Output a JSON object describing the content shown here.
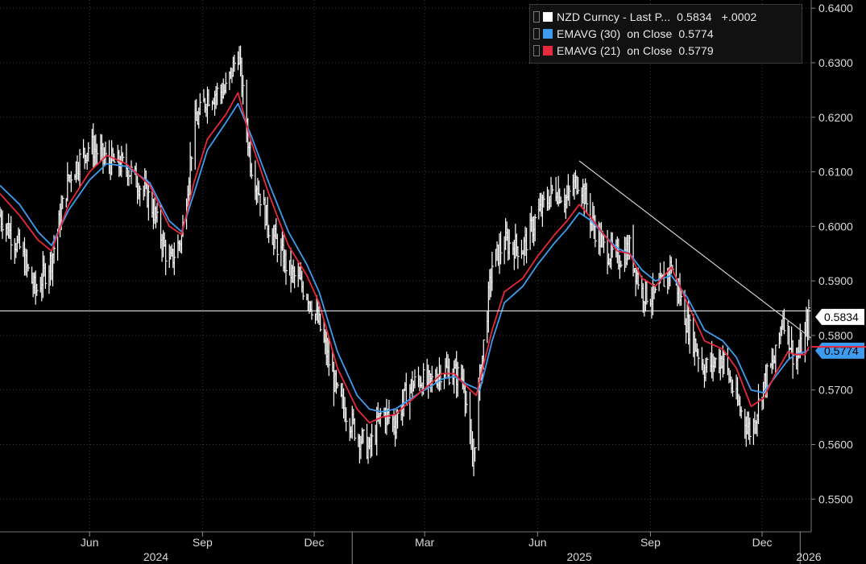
{
  "chart_data": {
    "type": "line",
    "title": "",
    "ticker": "NZD Curncy",
    "ylim": [
      0.544,
      0.6415
    ],
    "yticks": [
      0.55,
      0.56,
      0.57,
      0.58,
      0.59,
      0.6,
      0.61,
      0.62,
      0.63,
      0.64
    ],
    "ytick_labels": [
      "0.5500",
      "0.5600",
      "0.5700",
      "0.5800",
      "0.5900",
      "0.6000",
      "0.6100",
      "0.6200",
      "0.6300",
      "0.6400"
    ],
    "x_start": "2024-03-20",
    "x_end": "2026-01-10",
    "month_ticks": [
      {
        "label": "Jun",
        "date": "2024-06-01"
      },
      {
        "label": "Sep",
        "date": "2024-09-01"
      },
      {
        "label": "Dec",
        "date": "2024-12-01"
      },
      {
        "label": "Mar",
        "date": "2025-03-01"
      },
      {
        "label": "Jun",
        "date": "2025-06-01"
      },
      {
        "label": "Sep",
        "date": "2025-09-01"
      },
      {
        "label": "Dec",
        "date": "2025-12-01"
      }
    ],
    "year_ticks": [
      {
        "label": "2024",
        "date": "2024-07-25"
      },
      {
        "label": "2025",
        "date": "2025-07-05"
      },
      {
        "label": "2026",
        "date": "2026-01-08"
      }
    ],
    "year_dividers": [
      "2025-01-01",
      "2026-01-01"
    ],
    "series": [
      {
        "name": "NZD Curncy - Last Price",
        "color": "#ffffff",
        "style": "high-low bars",
        "last": 0.5834,
        "change": "+.0002",
        "points": [
          [
            "2024-03-20",
            0.602
          ],
          [
            "2024-04-05",
            0.596
          ],
          [
            "2024-04-18",
            0.588
          ],
          [
            "2024-05-01",
            0.594
          ],
          [
            "2024-05-15",
            0.609
          ],
          [
            "2024-06-01",
            0.615
          ],
          [
            "2024-06-15",
            0.612
          ],
          [
            "2024-07-01",
            0.611
          ],
          [
            "2024-07-20",
            0.605
          ],
          [
            "2024-08-05",
            0.593
          ],
          [
            "2024-08-15",
            0.598
          ],
          [
            "2024-08-25",
            0.618
          ],
          [
            "2024-09-05",
            0.624
          ],
          [
            "2024-09-20",
            0.625
          ],
          [
            "2024-09-30",
            0.632
          ],
          [
            "2024-10-10",
            0.612
          ],
          [
            "2024-10-25",
            0.6
          ],
          [
            "2024-11-10",
            0.592
          ],
          [
            "2024-11-25",
            0.588
          ],
          [
            "2024-12-05",
            0.582
          ],
          [
            "2024-12-20",
            0.569
          ],
          [
            "2025-01-05",
            0.562
          ],
          [
            "2025-01-15",
            0.559
          ],
          [
            "2025-01-25",
            0.566
          ],
          [
            "2025-02-05",
            0.564
          ],
          [
            "2025-02-15",
            0.57
          ],
          [
            "2025-02-25",
            0.572
          ],
          [
            "2025-03-05",
            0.571
          ],
          [
            "2025-03-15",
            0.574
          ],
          [
            "2025-03-25",
            0.573
          ],
          [
            "2025-04-02",
            0.572
          ],
          [
            "2025-04-09",
            0.556
          ],
          [
            "2025-04-15",
            0.572
          ],
          [
            "2025-04-25",
            0.593
          ],
          [
            "2025-05-05",
            0.597
          ],
          [
            "2025-05-20",
            0.596
          ],
          [
            "2025-06-01",
            0.602
          ],
          [
            "2025-06-15",
            0.607
          ],
          [
            "2025-06-25",
            0.605
          ],
          [
            "2025-07-05",
            0.609
          ],
          [
            "2025-07-15",
            0.601
          ],
          [
            "2025-07-25",
            0.596
          ],
          [
            "2025-08-05",
            0.594
          ],
          [
            "2025-08-15",
            0.596
          ],
          [
            "2025-08-25",
            0.588
          ],
          [
            "2025-09-05",
            0.587
          ],
          [
            "2025-09-18",
            0.593
          ],
          [
            "2025-10-01",
            0.582
          ],
          [
            "2025-10-15",
            0.574
          ],
          [
            "2025-10-30",
            0.576
          ],
          [
            "2025-11-10",
            0.568
          ],
          [
            "2025-11-22",
            0.562
          ],
          [
            "2025-12-02",
            0.571
          ],
          [
            "2025-12-12",
            0.576
          ],
          [
            "2025-12-18",
            0.584
          ],
          [
            "2025-12-28",
            0.575
          ],
          [
            "2026-01-05",
            0.58
          ],
          [
            "2026-01-08",
            0.5834
          ]
        ]
      },
      {
        "name": "EMAVG (30) on Close",
        "color": "#3d9cf0",
        "last": 0.5774,
        "points": [
          [
            "2024-03-20",
            0.6075
          ],
          [
            "2024-04-05",
            0.604
          ],
          [
            "2024-04-20",
            0.599
          ],
          [
            "2024-05-01",
            0.5965
          ],
          [
            "2024-05-15",
            0.603
          ],
          [
            "2024-06-01",
            0.6085
          ],
          [
            "2024-06-15",
            0.6115
          ],
          [
            "2024-07-01",
            0.611
          ],
          [
            "2024-07-20",
            0.608
          ],
          [
            "2024-08-05",
            0.601
          ],
          [
            "2024-08-15",
            0.599
          ],
          [
            "2024-08-25",
            0.606
          ],
          [
            "2024-09-05",
            0.614
          ],
          [
            "2024-09-20",
            0.619
          ],
          [
            "2024-09-30",
            0.6225
          ],
          [
            "2024-10-10",
            0.617
          ],
          [
            "2024-10-25",
            0.608
          ],
          [
            "2024-11-10",
            0.599
          ],
          [
            "2024-11-25",
            0.593
          ],
          [
            "2024-12-05",
            0.588
          ],
          [
            "2024-12-20",
            0.577
          ],
          [
            "2025-01-05",
            0.569
          ],
          [
            "2025-01-15",
            0.5665
          ],
          [
            "2025-01-25",
            0.566
          ],
          [
            "2025-02-05",
            0.5665
          ],
          [
            "2025-02-15",
            0.568
          ],
          [
            "2025-02-25",
            0.5695
          ],
          [
            "2025-03-05",
            0.5705
          ],
          [
            "2025-03-15",
            0.572
          ],
          [
            "2025-03-25",
            0.5725
          ],
          [
            "2025-04-05",
            0.571
          ],
          [
            "2025-04-15",
            0.57
          ],
          [
            "2025-04-25",
            0.579
          ],
          [
            "2025-05-05",
            0.586
          ],
          [
            "2025-05-20",
            0.589
          ],
          [
            "2025-06-01",
            0.593
          ],
          [
            "2025-06-15",
            0.597
          ],
          [
            "2025-06-25",
            0.5995
          ],
          [
            "2025-07-05",
            0.6025
          ],
          [
            "2025-07-15",
            0.601
          ],
          [
            "2025-07-25",
            0.5985
          ],
          [
            "2025-08-05",
            0.596
          ],
          [
            "2025-08-15",
            0.595
          ],
          [
            "2025-08-25",
            0.592
          ],
          [
            "2025-09-05",
            0.59
          ],
          [
            "2025-09-18",
            0.591
          ],
          [
            "2025-10-01",
            0.587
          ],
          [
            "2025-10-15",
            0.581
          ],
          [
            "2025-10-30",
            0.579
          ],
          [
            "2025-11-10",
            0.576
          ],
          [
            "2025-11-22",
            0.57
          ],
          [
            "2025-12-02",
            0.5695
          ],
          [
            "2025-12-12",
            0.5725
          ],
          [
            "2025-12-22",
            0.5755
          ],
          [
            "2025-12-28",
            0.5765
          ],
          [
            "2026-01-05",
            0.577
          ],
          [
            "2026-01-08",
            0.5774
          ]
        ]
      },
      {
        "name": "EMAVG (21) on Close",
        "color": "#e8283c",
        "last": 0.5779,
        "points": [
          [
            "2024-03-20",
            0.606
          ],
          [
            "2024-04-05",
            0.602
          ],
          [
            "2024-04-20",
            0.5975
          ],
          [
            "2024-05-01",
            0.5955
          ],
          [
            "2024-05-15",
            0.604
          ],
          [
            "2024-06-01",
            0.61
          ],
          [
            "2024-06-15",
            0.613
          ],
          [
            "2024-07-01",
            0.6115
          ],
          [
            "2024-07-20",
            0.6075
          ],
          [
            "2024-08-05",
            0.6
          ],
          [
            "2024-08-15",
            0.5985
          ],
          [
            "2024-08-25",
            0.608
          ],
          [
            "2024-09-05",
            0.616
          ],
          [
            "2024-09-20",
            0.6205
          ],
          [
            "2024-09-30",
            0.6245
          ],
          [
            "2024-10-10",
            0.616
          ],
          [
            "2024-10-25",
            0.606
          ],
          [
            "2024-11-10",
            0.5965
          ],
          [
            "2024-11-25",
            0.591
          ],
          [
            "2024-12-05",
            0.586
          ],
          [
            "2024-12-20",
            0.574
          ],
          [
            "2025-01-05",
            0.5665
          ],
          [
            "2025-01-15",
            0.564
          ],
          [
            "2025-01-25",
            0.565
          ],
          [
            "2025-02-05",
            0.5655
          ],
          [
            "2025-02-15",
            0.5675
          ],
          [
            "2025-02-25",
            0.5695
          ],
          [
            "2025-03-05",
            0.571
          ],
          [
            "2025-03-15",
            0.573
          ],
          [
            "2025-03-25",
            0.573
          ],
          [
            "2025-04-05",
            0.5705
          ],
          [
            "2025-04-12",
            0.569
          ],
          [
            "2025-04-25",
            0.581
          ],
          [
            "2025-05-05",
            0.588
          ],
          [
            "2025-05-20",
            0.5905
          ],
          [
            "2025-06-01",
            0.5945
          ],
          [
            "2025-06-15",
            0.5985
          ],
          [
            "2025-06-25",
            0.601
          ],
          [
            "2025-07-05",
            0.604
          ],
          [
            "2025-07-15",
            0.6015
          ],
          [
            "2025-07-25",
            0.5985
          ],
          [
            "2025-08-05",
            0.5955
          ],
          [
            "2025-08-15",
            0.595
          ],
          [
            "2025-08-25",
            0.5905
          ],
          [
            "2025-09-05",
            0.589
          ],
          [
            "2025-09-18",
            0.5925
          ],
          [
            "2025-10-01",
            0.586
          ],
          [
            "2025-10-15",
            0.579
          ],
          [
            "2025-10-30",
            0.5775
          ],
          [
            "2025-11-10",
            0.574
          ],
          [
            "2025-11-22",
            0.567
          ],
          [
            "2025-12-02",
            0.5685
          ],
          [
            "2025-12-12",
            0.573
          ],
          [
            "2025-12-22",
            0.577
          ],
          [
            "2025-12-28",
            0.5765
          ],
          [
            "2026-01-05",
            0.5765
          ],
          [
            "2026-01-08",
            0.5779
          ]
        ]
      }
    ],
    "trendline": {
      "from": [
        "2025-07-05",
        0.612
      ],
      "to": [
        "2026-01-10",
        0.5795
      ],
      "color": "#cfcfcf"
    },
    "hline": {
      "value": 0.5845,
      "color": "#ffffff"
    },
    "price_tags": [
      {
        "label": "0.5834",
        "value": 0.5834,
        "bg": "#ffffff",
        "fg": "#000000"
      },
      {
        "label": "0.5774",
        "value": 0.5772,
        "bg": "#3d9cf0",
        "fg": "#000000"
      }
    ],
    "legend": {
      "rows": [
        {
          "text": "NZD Curncy - Last P...  0.5834   +.0002",
          "color": "#ffffff"
        },
        {
          "text": "EMAVG (30)  on Close  0.5774",
          "color": "#3d9cf0"
        },
        {
          "text": "EMAVG (21)  on Close  0.5779",
          "color": "#e8283c"
        }
      ]
    }
  }
}
